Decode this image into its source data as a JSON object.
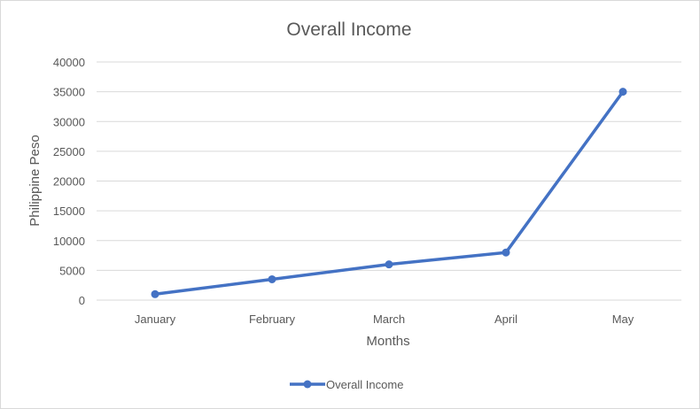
{
  "chart_data": {
    "type": "line",
    "title": "Overall Income",
    "xlabel": "Months",
    "ylabel": "Philippine Peso",
    "categories": [
      "January",
      "February",
      "March",
      "April",
      "May"
    ],
    "series": [
      {
        "name": "Overall Income",
        "values": [
          1000,
          3500,
          6000,
          8000,
          35000
        ],
        "color": "#4472c4"
      }
    ],
    "ylim": [
      0,
      40000
    ],
    "yticks": [
      "0",
      "5000",
      "10000",
      "15000",
      "20000",
      "25000",
      "30000",
      "35000",
      "40000"
    ],
    "grid": true,
    "legend": "bottom"
  }
}
